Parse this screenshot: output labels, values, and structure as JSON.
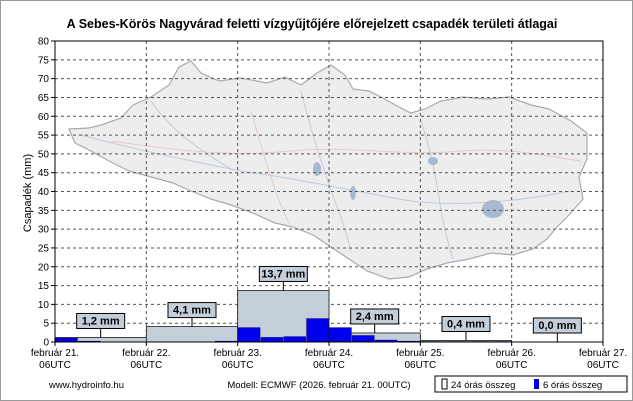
{
  "chart_data": {
    "type": "bar",
    "title": "A Sebes-Körös Nagyvárad feletti vízgyűjtőjére előrejelzett csapadék területi átlagai",
    "ylabel": "Csapadék (mm)",
    "xlabel": "",
    "ylim": [
      0,
      80
    ],
    "yticks": [
      0,
      5,
      10,
      15,
      20,
      25,
      30,
      35,
      40,
      45,
      50,
      55,
      60,
      65,
      70,
      75,
      80
    ],
    "grid": true,
    "xtick_labels": [
      {
        "line1": "február 21.",
        "line2": "06UTC"
      },
      {
        "line1": "február 22.",
        "line2": "06UTC"
      },
      {
        "line1": "február 23.",
        "line2": "06UTC"
      },
      {
        "line1": "február 24.",
        "line2": "06UTC"
      },
      {
        "line1": "február 25.",
        "line2": "06UTC"
      },
      {
        "line1": "február 26.",
        "line2": "06UTC"
      },
      {
        "line1": "február 27.",
        "line2": "06UTC"
      }
    ],
    "series": [
      {
        "name": "24 órás összeg",
        "color": "#c4ced8",
        "values": [
          1.2,
          4.1,
          13.7,
          2.4,
          0.4,
          0.0
        ],
        "labels": [
          "1,2 mm",
          "4,1 mm",
          "13,7 mm",
          "2,4 mm",
          "0,4 mm",
          "0,0 mm"
        ]
      },
      {
        "name": "6 órás összeg",
        "color": "#0000ee",
        "values": [
          1.0,
          0.2,
          0.0,
          0.0,
          0.0,
          0.0,
          0.0,
          0.2,
          3.8,
          1.2,
          1.4,
          6.2,
          3.8,
          1.7,
          0.5,
          0.2,
          0.1,
          0.1,
          0.1,
          0.1,
          0.0,
          0.0,
          0.0,
          0.0
        ]
      }
    ],
    "legend_position": "bottom-right"
  },
  "footer": {
    "website": "www.hydroinfo.hu",
    "model": "Modell: ECMWF (2026. február 21. 00UTC)"
  },
  "legend": {
    "label_24h": "24 órás összeg",
    "label_6h": "6 órás összeg"
  },
  "colors": {
    "grid": "#555555",
    "map_fill": "#ececec",
    "map_outline": "#9aa3ad",
    "lake": "#9fb3cc"
  }
}
